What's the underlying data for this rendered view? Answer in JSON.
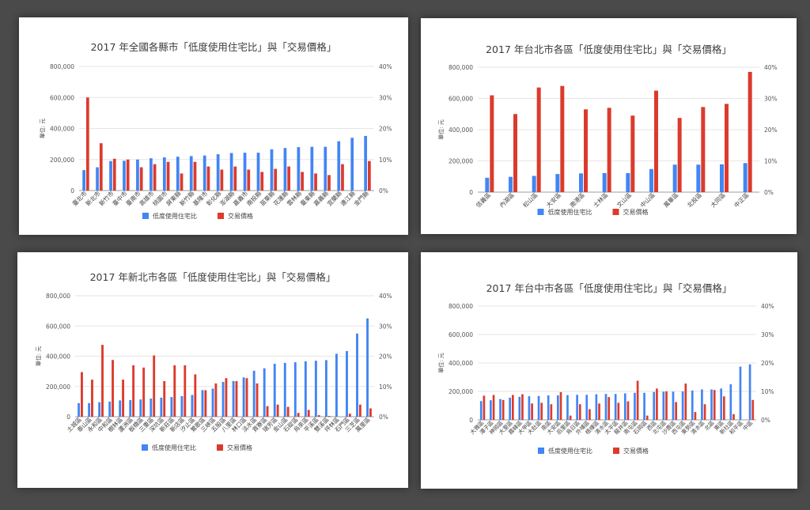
{
  "colors": {
    "background": "#4a4a4a",
    "panel": "#ffffff",
    "bar_low_usage": "#4285f4",
    "bar_price": "#db3b2c",
    "grid": "#e6e6e6",
    "text": "#444444"
  },
  "chart_data": [
    {
      "type": "bar",
      "title": "2017 年全國各縣市「低度使用住宅比」與「交易價格」",
      "ylabel": "單位: 元",
      "ylim": [
        0,
        800000
      ],
      "y2lim": [
        0,
        0.4
      ],
      "yticks": [
        "0",
        "200,000",
        "400,000",
        "600,000",
        "800,000"
      ],
      "y2ticks": [
        "0%",
        "10%",
        "20%",
        "30%",
        "40%"
      ],
      "legend_position": "bottom",
      "grid": true,
      "categories": [
        "臺北市",
        "新北市",
        "新竹市",
        "臺中市",
        "臺南市",
        "高雄市",
        "桃園市",
        "屏東縣",
        "新竹縣",
        "基隆市",
        "彰化縣",
        "澎湖縣",
        "嘉義市",
        "南投縣",
        "苗栗縣",
        "花蓮縣",
        "雲林縣",
        "臺東縣",
        "嘉義縣",
        "宜蘭縣",
        "連江縣",
        "金門縣"
      ],
      "series": [
        {
          "name": "低度使用住宅比",
          "axis": "right",
          "values": [
            0.066,
            0.075,
            0.095,
            0.096,
            0.1,
            0.104,
            0.107,
            0.109,
            0.111,
            0.113,
            0.117,
            0.121,
            0.122,
            0.122,
            0.133,
            0.137,
            0.14,
            0.141,
            0.141,
            0.159,
            0.17,
            0.176
          ]
        },
        {
          "name": "交易價格",
          "axis": "left",
          "values": [
            600000,
            305000,
            205000,
            200000,
            150000,
            170000,
            185000,
            110000,
            185000,
            155000,
            135000,
            155000,
            135000,
            120000,
            140000,
            155000,
            120000,
            110000,
            100000,
            170000,
            null,
            190000
          ]
        }
      ]
    },
    {
      "type": "bar",
      "title": "2017 年台北市各區「低度使用住宅比」與「交易價格」",
      "ylabel": "單位: 元",
      "ylim": [
        0,
        800000
      ],
      "y2lim": [
        0,
        0.4
      ],
      "yticks": [
        "0",
        "200,000",
        "400,000",
        "600,000",
        "800,000"
      ],
      "y2ticks": [
        "0%",
        "10%",
        "20%",
        "30%",
        "40%"
      ],
      "legend_position": "bottom",
      "grid": true,
      "categories": [
        "信義區",
        "內湖區",
        "松山區",
        "大安區",
        "南港區",
        "士林區",
        "文山區",
        "中山區",
        "萬華區",
        "北投區",
        "大同區",
        "中正區"
      ],
      "series": [
        {
          "name": "低度使用住宅比",
          "axis": "right",
          "values": [
            0.046,
            0.049,
            0.052,
            0.058,
            0.06,
            0.061,
            0.061,
            0.074,
            0.088,
            0.088,
            0.089,
            0.093
          ]
        },
        {
          "name": "交易價格",
          "axis": "left",
          "values": [
            620000,
            500000,
            670000,
            680000,
            530000,
            540000,
            490000,
            650000,
            475000,
            545000,
            565000,
            770000
          ]
        }
      ]
    },
    {
      "type": "bar",
      "title": "2017 年新北市各區「低度使用住宅比」與「交易價格」",
      "ylabel": "單位: 元",
      "ylim": [
        0,
        800000
      ],
      "y2lim": [
        0,
        0.4
      ],
      "yticks": [
        "0",
        "200,000",
        "400,000",
        "600,000",
        "800,000"
      ],
      "y2ticks": [
        "0%",
        "10%",
        "20%",
        "30%",
        "40%"
      ],
      "legend_position": "bottom",
      "grid": true,
      "categories": [
        "土城區",
        "泰山區",
        "永和區",
        "中和區",
        "樹林區",
        "蘆洲區",
        "板橋區",
        "三重區",
        "深坑區",
        "新莊區",
        "新店區",
        "汐止區",
        "鶯歌區",
        "三峽區",
        "五股區",
        "八里區",
        "林口區",
        "淡水區",
        "貢寮區",
        "瑞芳區",
        "金山區",
        "石碇區",
        "烏來區",
        "平溪區",
        "雙溪區",
        "坪林區",
        "石門區",
        "三芝區",
        "萬里區"
      ],
      "series": [
        {
          "name": "低度使用住宅比",
          "axis": "right",
          "values": [
            0.045,
            0.045,
            0.048,
            0.05,
            0.054,
            0.055,
            0.057,
            0.06,
            0.063,
            0.065,
            0.068,
            0.072,
            0.088,
            0.093,
            0.115,
            0.118,
            0.13,
            0.152,
            0.16,
            0.175,
            0.178,
            0.18,
            0.183,
            0.185,
            0.187,
            0.208,
            0.217,
            0.275,
            0.325
          ]
        },
        {
          "name": "交易價格",
          "axis": "left",
          "values": [
            295000,
            245000,
            475000,
            375000,
            245000,
            340000,
            325000,
            405000,
            235000,
            340000,
            340000,
            280000,
            175000,
            220000,
            255000,
            235000,
            255000,
            220000,
            70000,
            80000,
            65000,
            25000,
            45000,
            10000,
            5000,
            null,
            20000,
            80000,
            55000
          ]
        }
      ]
    },
    {
      "type": "bar",
      "title": "2017 年台中市各區「低度使用住宅比」與「交易價格」",
      "ylabel": "單位: 元",
      "ylim": [
        0,
        800000
      ],
      "y2lim": [
        0,
        0.4
      ],
      "yticks": [
        "0",
        "200,000",
        "400,000",
        "600,000",
        "800,000"
      ],
      "y2ticks": [
        "0%",
        "10%",
        "20%",
        "30%",
        "40%"
      ],
      "legend_position": "bottom",
      "grid": true,
      "categories": [
        "大雅區",
        "潭子區",
        "神岡區",
        "大里區",
        "霧峰區",
        "大甲區",
        "大肚區",
        "南區",
        "大安區",
        "后里區",
        "烏日區",
        "外埔區",
        "梧棲區",
        "清水區",
        "太平區",
        "龍井區",
        "南屯區",
        "石岡區",
        "西區",
        "北屯區",
        "沙鹿區",
        "西屯區",
        "東勢區",
        "清水區",
        "北區",
        "東區",
        "新社區",
        "和平區",
        "中區"
      ],
      "series": [
        {
          "name": "低度使用住宅比",
          "axis": "right",
          "values": [
            0.066,
            0.069,
            0.073,
            0.078,
            0.081,
            0.083,
            0.084,
            0.086,
            0.086,
            0.087,
            0.088,
            0.088,
            0.09,
            0.091,
            0.091,
            0.093,
            0.095,
            0.095,
            0.098,
            0.099,
            0.099,
            0.1,
            0.103,
            0.107,
            0.107,
            0.11,
            0.125,
            0.187,
            0.195
          ]
        },
        {
          "name": "交易價格",
          "axis": "left",
          "values": [
            170000,
            175000,
            140000,
            175000,
            180000,
            115000,
            120000,
            110000,
            195000,
            30000,
            110000,
            75000,
            115000,
            160000,
            120000,
            130000,
            275000,
            30000,
            220000,
            200000,
            125000,
            255000,
            55000,
            110000,
            210000,
            165000,
            40000,
            null,
            140000
          ]
        }
      ]
    }
  ]
}
